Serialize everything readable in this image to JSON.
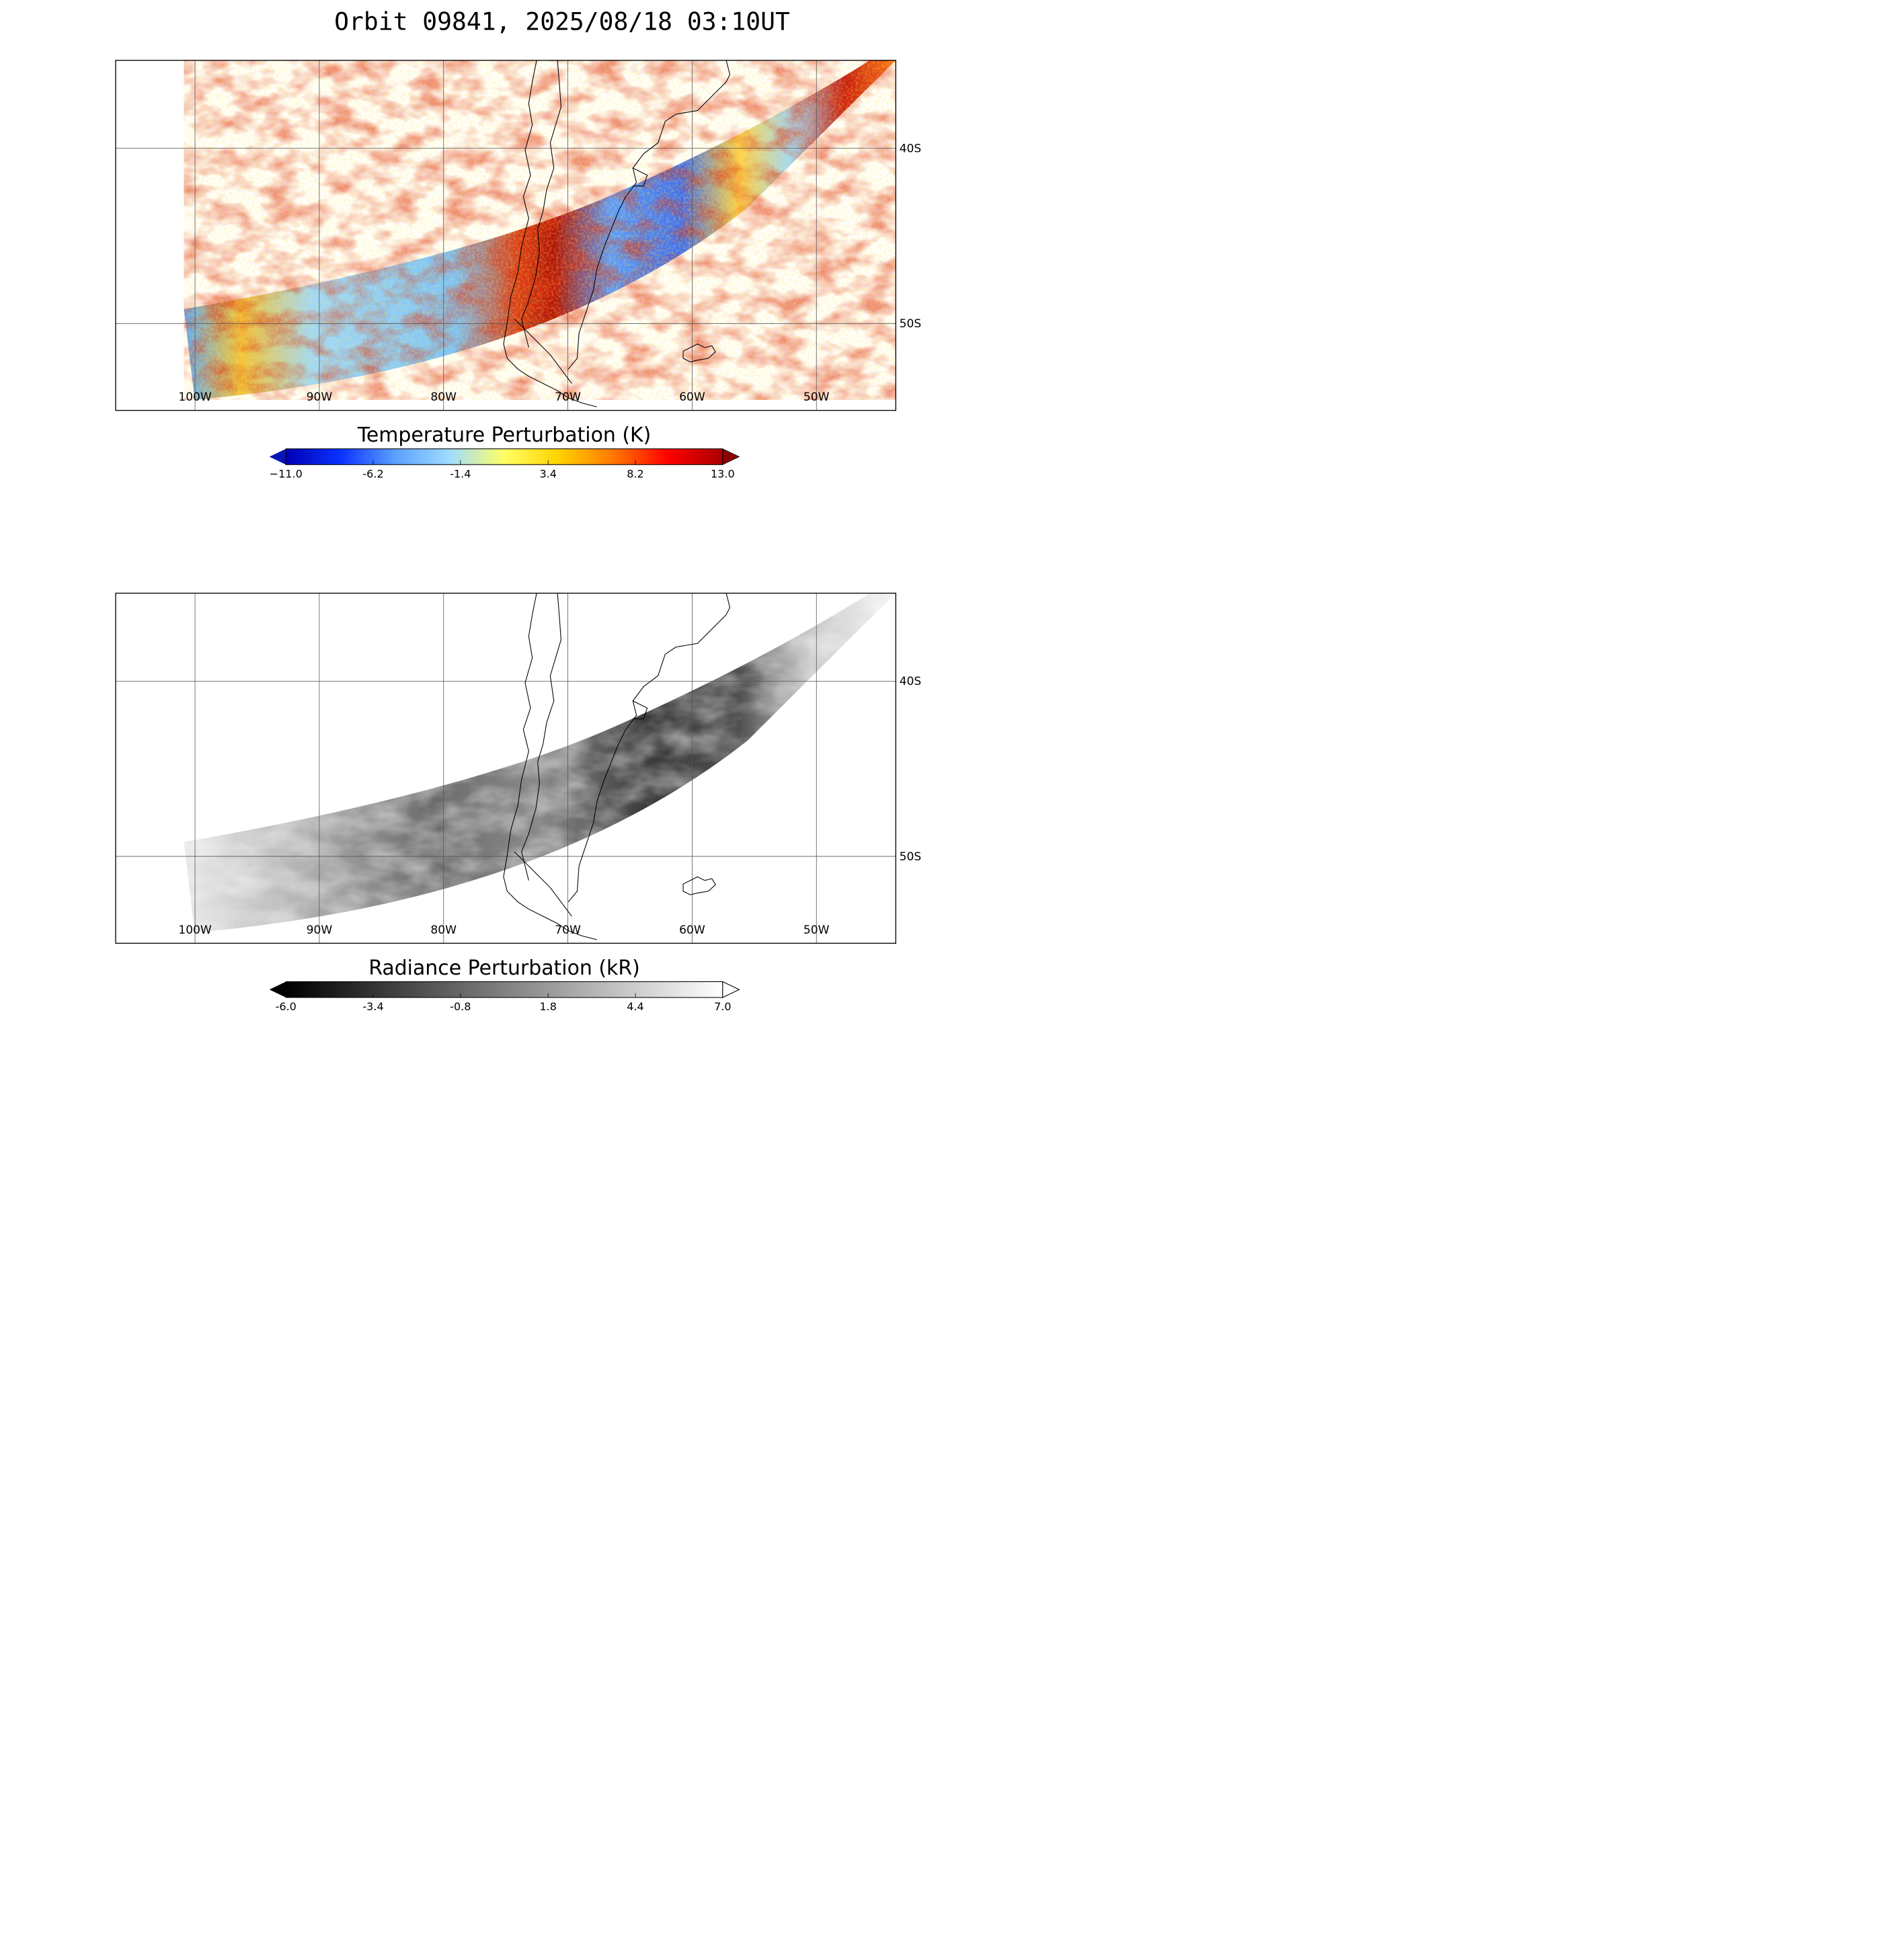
{
  "title": "Orbit 09841, 2025/08/18 03:10UT",
  "map": {
    "lon_labels": [
      "100W",
      "90W",
      "80W",
      "70W",
      "60W",
      "50W"
    ],
    "lat_labels": [
      "40S",
      "50S"
    ]
  },
  "panels": [
    {
      "id": "temperature",
      "colorbar": {
        "title": "Temperature Perturbation (K)",
        "ticks": [
          "−11.0",
          "-6.2",
          "-1.4",
          "3.4",
          "8.2",
          "13.0"
        ],
        "min": -11.0,
        "max": 13.0,
        "colors": [
          "#0000b4",
          "#0a32ff",
          "#5aa0ff",
          "#a0dcff",
          "#ffff64",
          "#ffd200",
          "#ff7800",
          "#ff0000",
          "#aa0000"
        ],
        "under_color": "#0a14b4",
        "over_color": "#8c0000"
      }
    },
    {
      "id": "radiance",
      "colorbar": {
        "title": "Radiance Perturbation (kR)",
        "ticks": [
          "-6.0",
          "-3.4",
          "-0.8",
          "1.8",
          "4.4",
          "7.0"
        ],
        "min": -6.0,
        "max": 7.0,
        "colors": [
          "#000000",
          "#404040",
          "#808080",
          "#c0c0c0",
          "#ffffff"
        ],
        "under_color": "#000000",
        "over_color": "#ffffff"
      }
    }
  ]
}
